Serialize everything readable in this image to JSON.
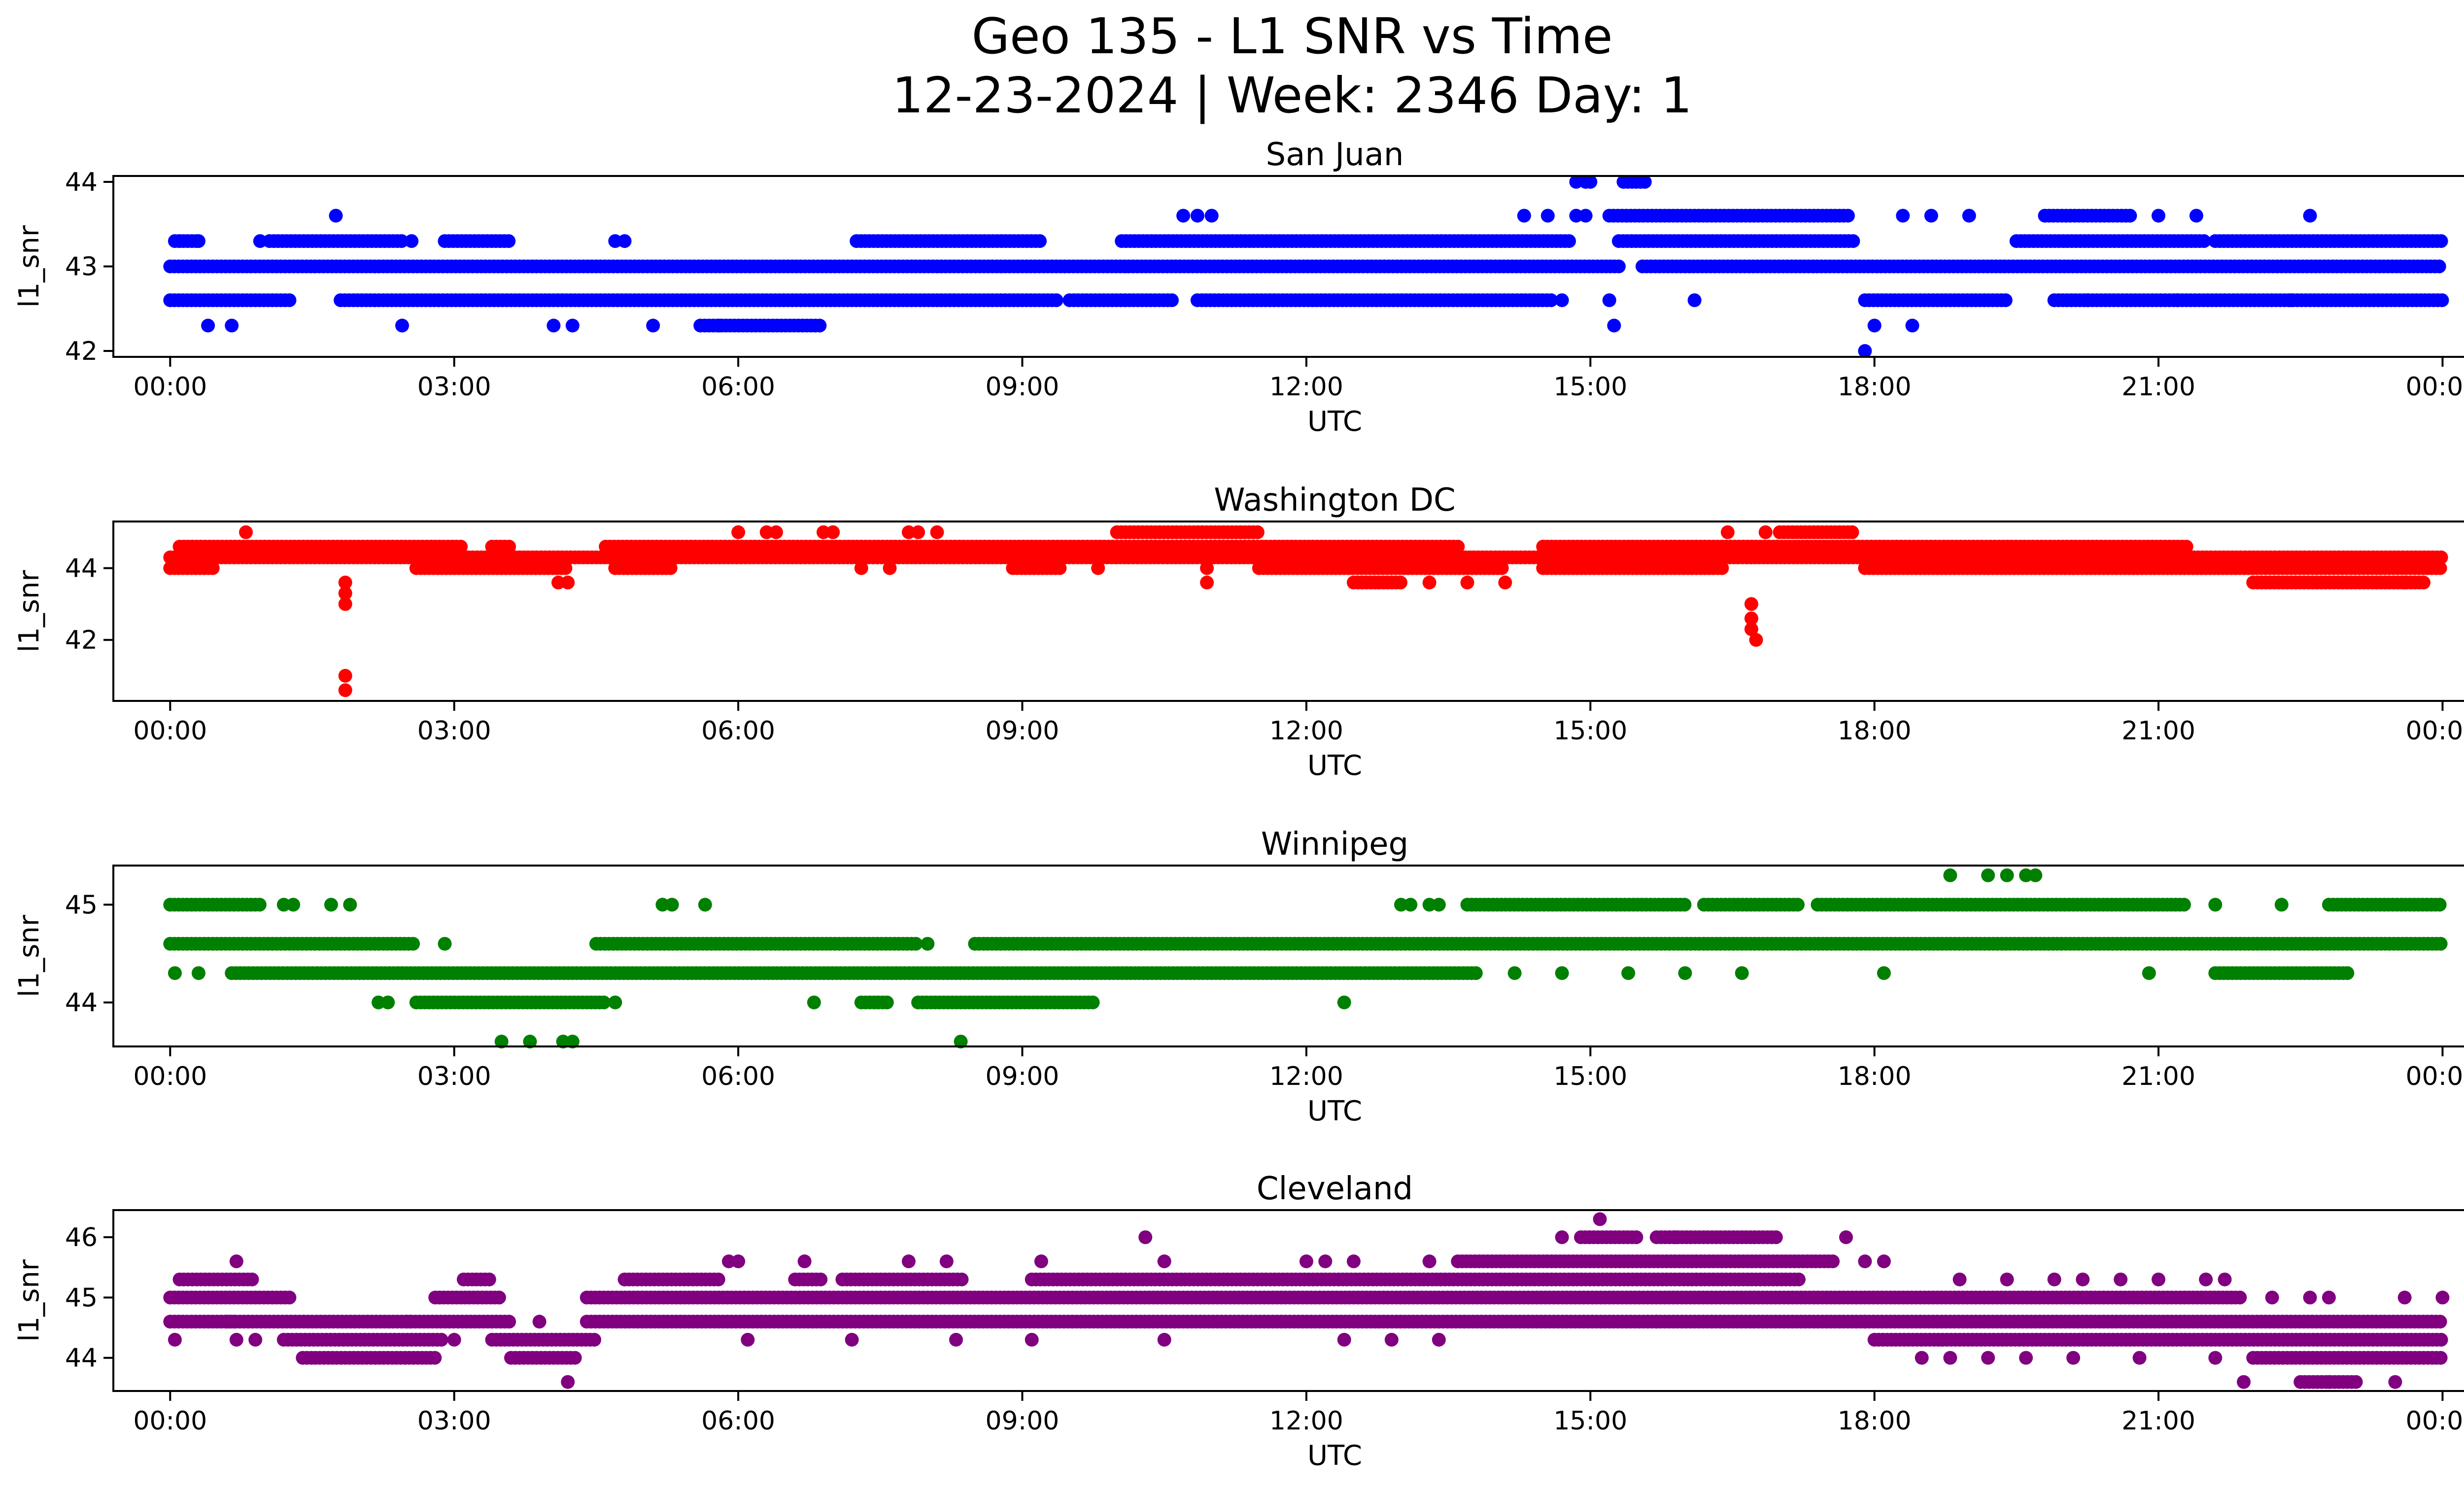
{
  "figure": {
    "title_line1": "Geo 135 - L1 SNR vs Time",
    "title_line2": "12-23-2024 | Week: 2346 Day: 1"
  },
  "chart_data": [
    {
      "type": "scatter",
      "title": "San Juan",
      "color": "#0000ff",
      "xlabel": "UTC",
      "ylabel": "l1_snr",
      "xlim": [
        -0.6,
        25.2
      ],
      "xticks": [
        0,
        3,
        6,
        9,
        12,
        15,
        18,
        21,
        24
      ],
      "xtick_labels": [
        "00:00",
        "03:00",
        "06:00",
        "09:00",
        "12:00",
        "15:00",
        "18:00",
        "21:00",
        "00:00"
      ],
      "ylim": [
        41.93,
        44.07
      ],
      "yticks": [
        42,
        43,
        44
      ],
      "ytick_labels": [
        "42",
        "43",
        "44"
      ],
      "series": [
        {
          "y": 43.0,
          "segments": [
            [
              0.0,
              15.3
            ],
            [
              15.55,
              24.0
            ]
          ]
        },
        {
          "y": 43.3,
          "segments": [
            [
              0.05,
              0.3
            ],
            [
              1.05,
              2.45
            ],
            [
              2.9,
              3.6
            ],
            [
              7.25,
              9.2
            ],
            [
              10.05,
              14.8
            ],
            [
              15.3,
              17.8
            ],
            [
              19.5,
              21.5
            ],
            [
              21.6,
              24.0
            ]
          ]
        },
        {
          "y": 42.6,
          "segments": [
            [
              0.0,
              1.3
            ],
            [
              1.8,
              9.4
            ],
            [
              9.5,
              10.6
            ],
            [
              10.85,
              14.6
            ],
            [
              17.9,
              19.4
            ],
            [
              19.9,
              24.0
            ]
          ]
        },
        {
          "y": 43.6,
          "segments": [
            [
              15.2,
              17.75
            ],
            [
              19.8,
              20.7
            ]
          ]
        },
        {
          "y": 42.3,
          "segments": [
            [
              5.6,
              6.9
            ]
          ]
        },
        {
          "y": 44.0,
          "segments": [
            [
              15.35,
              15.6
            ]
          ]
        }
      ],
      "points": [
        [
          0.1,
          43.3
        ],
        [
          0.3,
          43.3
        ],
        [
          0.95,
          43.3
        ],
        [
          1.75,
          43.6
        ],
        [
          2.55,
          43.3
        ],
        [
          4.7,
          43.3
        ],
        [
          4.8,
          43.3
        ],
        [
          10.7,
          43.6
        ],
        [
          10.85,
          43.6
        ],
        [
          11.0,
          43.6
        ],
        [
          14.3,
          43.6
        ],
        [
          14.55,
          43.6
        ],
        [
          14.85,
          43.6
        ],
        [
          14.95,
          43.6
        ],
        [
          18.3,
          43.6
        ],
        [
          18.6,
          43.6
        ],
        [
          19.0,
          43.6
        ],
        [
          21.0,
          43.6
        ],
        [
          21.4,
          43.6
        ],
        [
          22.6,
          43.6
        ],
        [
          0.4,
          42.3
        ],
        [
          0.65,
          42.3
        ],
        [
          2.45,
          42.3
        ],
        [
          4.05,
          42.3
        ],
        [
          4.25,
          42.3
        ],
        [
          5.1,
          42.3
        ],
        [
          5.8,
          42.3
        ],
        [
          15.25,
          42.3
        ],
        [
          18.0,
          42.3
        ],
        [
          18.4,
          42.3
        ],
        [
          17.9,
          42.0
        ],
        [
          14.85,
          44.0
        ],
        [
          14.95,
          44.0
        ],
        [
          15.0,
          44.0
        ],
        [
          14.7,
          42.6
        ],
        [
          15.2,
          42.6
        ],
        [
          16.1,
          42.6
        ],
        [
          20.25,
          42.6
        ],
        [
          21.2,
          42.6
        ],
        [
          22.4,
          42.6
        ]
      ]
    },
    {
      "type": "scatter",
      "title": "Washington DC",
      "color": "#ff0000",
      "xlabel": "UTC",
      "ylabel": "l1_snr",
      "xlim": [
        -0.6,
        25.2
      ],
      "xticks": [
        0,
        3,
        6,
        9,
        12,
        15,
        18,
        21,
        24
      ],
      "xtick_labels": [
        "00:00",
        "03:00",
        "06:00",
        "09:00",
        "12:00",
        "15:00",
        "18:00",
        "21:00",
        "00:00"
      ],
      "ylim": [
        40.3,
        45.3
      ],
      "yticks": [
        42,
        44
      ],
      "ytick_labels": [
        "42",
        "44"
      ],
      "series": [
        {
          "y": 44.3,
          "segments": [
            [
              0.0,
              24.0
            ]
          ]
        },
        {
          "y": 44.0,
          "segments": [
            [
              0.0,
              0.45
            ],
            [
              2.6,
              4.2
            ],
            [
              4.7,
              5.3
            ],
            [
              8.9,
              9.4
            ],
            [
              11.5,
              14.1
            ],
            [
              14.5,
              16.4
            ],
            [
              17.9,
              24.0
            ]
          ]
        },
        {
          "y": 44.6,
          "segments": [
            [
              0.1,
              3.1
            ],
            [
              3.4,
              3.6
            ],
            [
              4.6,
              13.6
            ],
            [
              14.5,
              21.3
            ]
          ]
        },
        {
          "y": 43.6,
          "segments": [
            [
              12.5,
              13.0
            ],
            [
              22.0,
              23.8
            ]
          ]
        },
        {
          "y": 45.0,
          "segments": [
            [
              10.0,
              11.5
            ],
            [
              17.0,
              17.8
            ]
          ]
        }
      ],
      "points": [
        [
          0.8,
          45.0
        ],
        [
          6.0,
          45.0
        ],
        [
          6.3,
          45.0
        ],
        [
          6.4,
          45.0
        ],
        [
          6.9,
          45.0
        ],
        [
          7.0,
          45.0
        ],
        [
          7.8,
          45.0
        ],
        [
          7.9,
          45.0
        ],
        [
          8.1,
          45.0
        ],
        [
          16.45,
          45.0
        ],
        [
          16.85,
          45.0
        ],
        [
          1.85,
          43.6
        ],
        [
          1.85,
          43.3
        ],
        [
          1.85,
          43.0
        ],
        [
          1.85,
          41.0
        ],
        [
          1.85,
          40.6
        ],
        [
          16.7,
          43.0
        ],
        [
          16.7,
          42.6
        ],
        [
          16.7,
          42.3
        ],
        [
          16.75,
          42.0
        ],
        [
          4.1,
          43.6
        ],
        [
          4.2,
          43.6
        ],
        [
          10.95,
          43.6
        ],
        [
          10.95,
          44.0
        ],
        [
          13.3,
          43.6
        ],
        [
          13.7,
          43.6
        ],
        [
          14.1,
          43.6
        ],
        [
          23.6,
          43.6
        ],
        [
          7.3,
          44.0
        ],
        [
          7.6,
          44.0
        ],
        [
          9.8,
          44.0
        ],
        [
          19.2,
          44.0
        ],
        [
          20.1,
          44.0
        ]
      ]
    },
    {
      "type": "scatter",
      "title": "Winnipeg",
      "color": "#008000",
      "xlabel": "UTC",
      "ylabel": "l1_snr",
      "xlim": [
        -0.6,
        25.2
      ],
      "xticks": [
        0,
        3,
        6,
        9,
        12,
        15,
        18,
        21,
        24
      ],
      "xtick_labels": [
        "00:00",
        "03:00",
        "06:00",
        "09:00",
        "12:00",
        "15:00",
        "18:00",
        "21:00",
        "00:00"
      ],
      "ylim": [
        43.55,
        45.4
      ],
      "yticks": [
        44,
        45
      ],
      "ytick_labels": [
        "44",
        "45"
      ],
      "series": [
        {
          "y": 44.6,
          "segments": [
            [
              0.0,
              2.6
            ],
            [
              4.5,
              7.9
            ],
            [
              8.5,
              24.0
            ]
          ]
        },
        {
          "y": 44.3,
          "segments": [
            [
              0.65,
              13.8
            ],
            [
              21.6,
              23.0
            ]
          ]
        },
        {
          "y": 45.0,
          "segments": [
            [
              0.0,
              0.95
            ],
            [
              13.7,
              16.0
            ],
            [
              16.2,
              17.2
            ],
            [
              17.4,
              21.3
            ],
            [
              22.8,
              24.0
            ]
          ]
        },
        {
          "y": 44.0,
          "segments": [
            [
              2.6,
              4.6
            ],
            [
              7.3,
              7.6
            ],
            [
              7.9,
              9.75
            ]
          ]
        }
      ],
      "points": [
        [
          0.05,
          44.3
        ],
        [
          0.3,
          44.3
        ],
        [
          1.2,
          45.0
        ],
        [
          1.3,
          45.0
        ],
        [
          1.7,
          45.0
        ],
        [
          1.9,
          45.0
        ],
        [
          5.2,
          45.0
        ],
        [
          5.3,
          45.0
        ],
        [
          5.65,
          45.0
        ],
        [
          13.0,
          45.0
        ],
        [
          13.1,
          45.0
        ],
        [
          13.3,
          45.0
        ],
        [
          13.4,
          45.0
        ],
        [
          21.6,
          45.0
        ],
        [
          22.3,
          45.0
        ],
        [
          18.8,
          45.3
        ],
        [
          19.2,
          45.3
        ],
        [
          19.4,
          45.3
        ],
        [
          19.6,
          45.3
        ],
        [
          19.7,
          45.3
        ],
        [
          2.9,
          44.6
        ],
        [
          8.0,
          44.6
        ],
        [
          2.2,
          44.0
        ],
        [
          2.3,
          44.0
        ],
        [
          4.7,
          44.0
        ],
        [
          6.8,
          44.0
        ],
        [
          12.4,
          44.0
        ],
        [
          3.5,
          43.6
        ],
        [
          3.8,
          43.6
        ],
        [
          4.15,
          43.6
        ],
        [
          4.25,
          43.6
        ],
        [
          8.35,
          43.6
        ],
        [
          14.2,
          44.3
        ],
        [
          14.7,
          44.3
        ],
        [
          15.4,
          44.3
        ],
        [
          16.0,
          44.3
        ],
        [
          16.6,
          44.3
        ],
        [
          18.1,
          44.3
        ],
        [
          20.9,
          44.3
        ]
      ]
    },
    {
      "type": "scatter",
      "title": "Cleveland",
      "color": "#800080",
      "xlabel": "UTC",
      "ylabel": "l1_snr",
      "xlim": [
        -0.6,
        25.2
      ],
      "xticks": [
        0,
        3,
        6,
        9,
        12,
        15,
        18,
        21,
        24
      ],
      "xtick_labels": [
        "00:00",
        "03:00",
        "06:00",
        "09:00",
        "12:00",
        "15:00",
        "18:00",
        "21:00",
        "00:00"
      ],
      "ylim": [
        43.45,
        46.45
      ],
      "yticks": [
        44,
        45,
        46
      ],
      "ytick_labels": [
        "44",
        "45",
        "46"
      ],
      "series": [
        {
          "y": 44.6,
          "segments": [
            [
              0.0,
              0.7
            ],
            [
              0.6,
              2.55
            ],
            [
              2.5,
              3.6
            ],
            [
              4.4,
              24.0
            ]
          ]
        },
        {
          "y": 44.3,
          "segments": [
            [
              1.2,
              2.9
            ],
            [
              3.4,
              4.5
            ],
            [
              18.0,
              24.0
            ]
          ]
        },
        {
          "y": 44.0,
          "segments": [
            [
              1.4,
              2.8
            ],
            [
              3.6,
              4.3
            ],
            [
              22.0,
              24.0
            ]
          ]
        },
        {
          "y": 45.0,
          "segments": [
            [
              0.0,
              1.3
            ],
            [
              2.8,
              3.5
            ],
            [
              4.4,
              21.9
            ]
          ]
        },
        {
          "y": 45.3,
          "segments": [
            [
              0.1,
              0.9
            ],
            [
              3.1,
              3.4
            ],
            [
              4.8,
              5.8
            ],
            [
              6.6,
              6.9
            ],
            [
              7.1,
              8.4
            ],
            [
              9.1,
              17.2
            ]
          ]
        },
        {
          "y": 45.6,
          "segments": [
            [
              13.6,
              17.6
            ]
          ]
        },
        {
          "y": 46.0,
          "segments": [
            [
              14.9,
              15.5
            ],
            [
              15.7,
              17.0
            ]
          ]
        },
        {
          "y": 43.6,
          "segments": [
            [
              22.5,
              23.1
            ]
          ]
        }
      ],
      "points": [
        [
          0.05,
          44.3
        ],
        [
          0.7,
          44.3
        ],
        [
          0.9,
          44.3
        ],
        [
          3.0,
          44.3
        ],
        [
          6.1,
          44.3
        ],
        [
          7.2,
          44.3
        ],
        [
          8.3,
          44.3
        ],
        [
          9.1,
          44.3
        ],
        [
          10.5,
          44.3
        ],
        [
          12.4,
          44.3
        ],
        [
          12.9,
          44.3
        ],
        [
          13.4,
          44.3
        ],
        [
          18.5,
          44.0
        ],
        [
          18.8,
          44.0
        ],
        [
          19.2,
          44.0
        ],
        [
          19.6,
          44.0
        ],
        [
          20.1,
          44.0
        ],
        [
          20.8,
          44.0
        ],
        [
          21.6,
          44.0
        ],
        [
          0.7,
          45.6
        ],
        [
          5.9,
          45.6
        ],
        [
          6.0,
          45.6
        ],
        [
          6.7,
          45.6
        ],
        [
          7.8,
          45.6
        ],
        [
          8.2,
          45.6
        ],
        [
          9.2,
          45.6
        ],
        [
          10.5,
          45.6
        ],
        [
          12.0,
          45.6
        ],
        [
          12.2,
          45.6
        ],
        [
          12.5,
          45.6
        ],
        [
          13.3,
          45.6
        ],
        [
          17.9,
          45.6
        ],
        [
          18.1,
          45.6
        ],
        [
          10.3,
          46.0
        ],
        [
          14.7,
          46.0
        ],
        [
          15.1,
          46.3
        ],
        [
          15.9,
          46.0
        ],
        [
          17.7,
          46.0
        ],
        [
          3.9,
          44.6
        ],
        [
          15.7,
          44.6
        ],
        [
          17.9,
          44.6
        ],
        [
          4.2,
          43.6
        ],
        [
          21.9,
          43.6
        ],
        [
          22.8,
          43.6
        ],
        [
          23.5,
          43.6
        ],
        [
          18.9,
          45.3
        ],
        [
          19.4,
          45.3
        ],
        [
          19.9,
          45.3
        ],
        [
          20.2,
          45.3
        ],
        [
          20.6,
          45.3
        ],
        [
          21.0,
          45.3
        ],
        [
          21.5,
          45.3
        ],
        [
          21.7,
          45.3
        ],
        [
          22.2,
          45.0
        ],
        [
          22.6,
          45.0
        ],
        [
          22.8,
          45.0
        ],
        [
          23.6,
          45.0
        ],
        [
          24.0,
          45.0
        ]
      ]
    }
  ]
}
